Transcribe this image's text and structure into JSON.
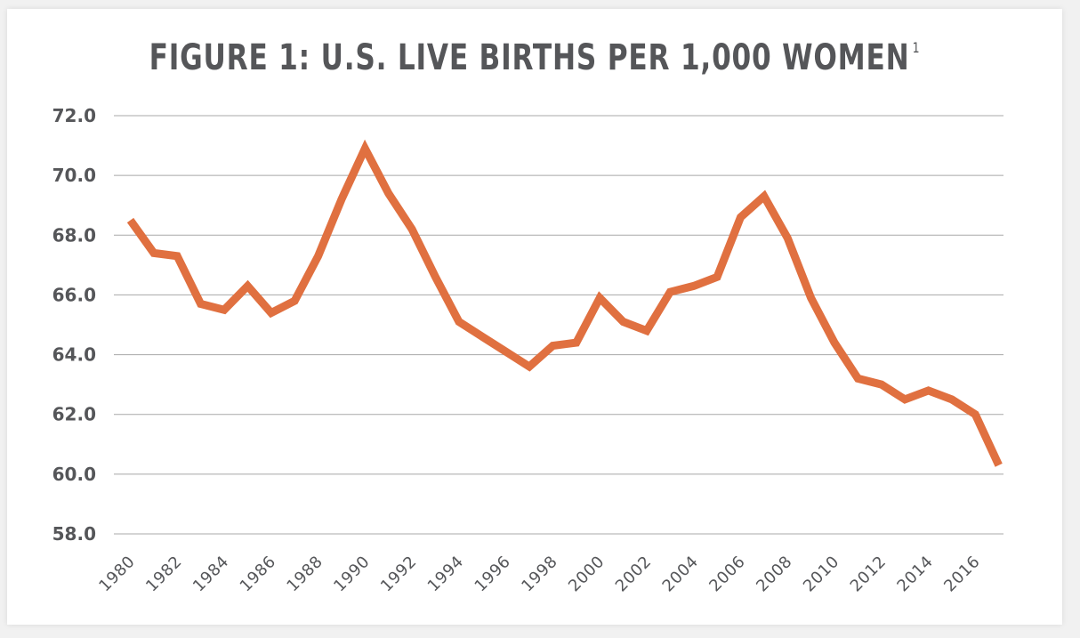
{
  "chart_data": {
    "type": "line",
    "title": "FIGURE 1: U.S. LIVE BIRTHS PER 1,000 WOMEN",
    "title_footnote": "1",
    "xlabel": "",
    "ylabel": "",
    "ylim": [
      58,
      72
    ],
    "yticks": [
      "72.0",
      "70.0",
      "68.0",
      "66.0",
      "64.0",
      "62.0",
      "60.0",
      "58.0"
    ],
    "ytick_values": [
      72,
      70,
      68,
      66,
      64,
      62,
      60,
      58
    ],
    "xtick_labels": [
      "1980",
      "1982",
      "1984",
      "1986",
      "1988",
      "1990",
      "1992",
      "1994",
      "1996",
      "1998",
      "2000",
      "2002",
      "2004",
      "2006",
      "2008",
      "2010",
      "2012",
      "2014",
      "2016"
    ],
    "xtick_values": [
      1980,
      1982,
      1984,
      1986,
      1988,
      1990,
      1992,
      1994,
      1996,
      1998,
      2000,
      2002,
      2004,
      2006,
      2008,
      2010,
      2012,
      2014,
      2016
    ],
    "grid": true,
    "line_color": "#e07040",
    "series": [
      {
        "x": [
          1980,
          1981,
          1982,
          1983,
          1984,
          1985,
          1986,
          1987,
          1988,
          1989,
          1990,
          1991,
          1992,
          1993,
          1994,
          1995,
          1996,
          1997,
          1998,
          1999,
          2000,
          2001,
          2002,
          2003,
          2004,
          2005,
          2006,
          2007,
          2008,
          2009,
          2010,
          2011,
          2012,
          2013,
          2014,
          2015,
          2016,
          2017
        ],
        "values": [
          68.5,
          67.4,
          67.3,
          65.7,
          65.5,
          66.3,
          65.4,
          65.8,
          67.3,
          69.2,
          70.9,
          69.4,
          68.2,
          66.6,
          65.1,
          64.6,
          64.1,
          63.6,
          64.3,
          64.4,
          65.9,
          65.1,
          64.8,
          66.1,
          66.3,
          66.6,
          68.6,
          69.3,
          67.9,
          65.9,
          64.4,
          63.2,
          63.0,
          62.5,
          62.8,
          62.5,
          62.0,
          60.3
        ]
      }
    ]
  }
}
